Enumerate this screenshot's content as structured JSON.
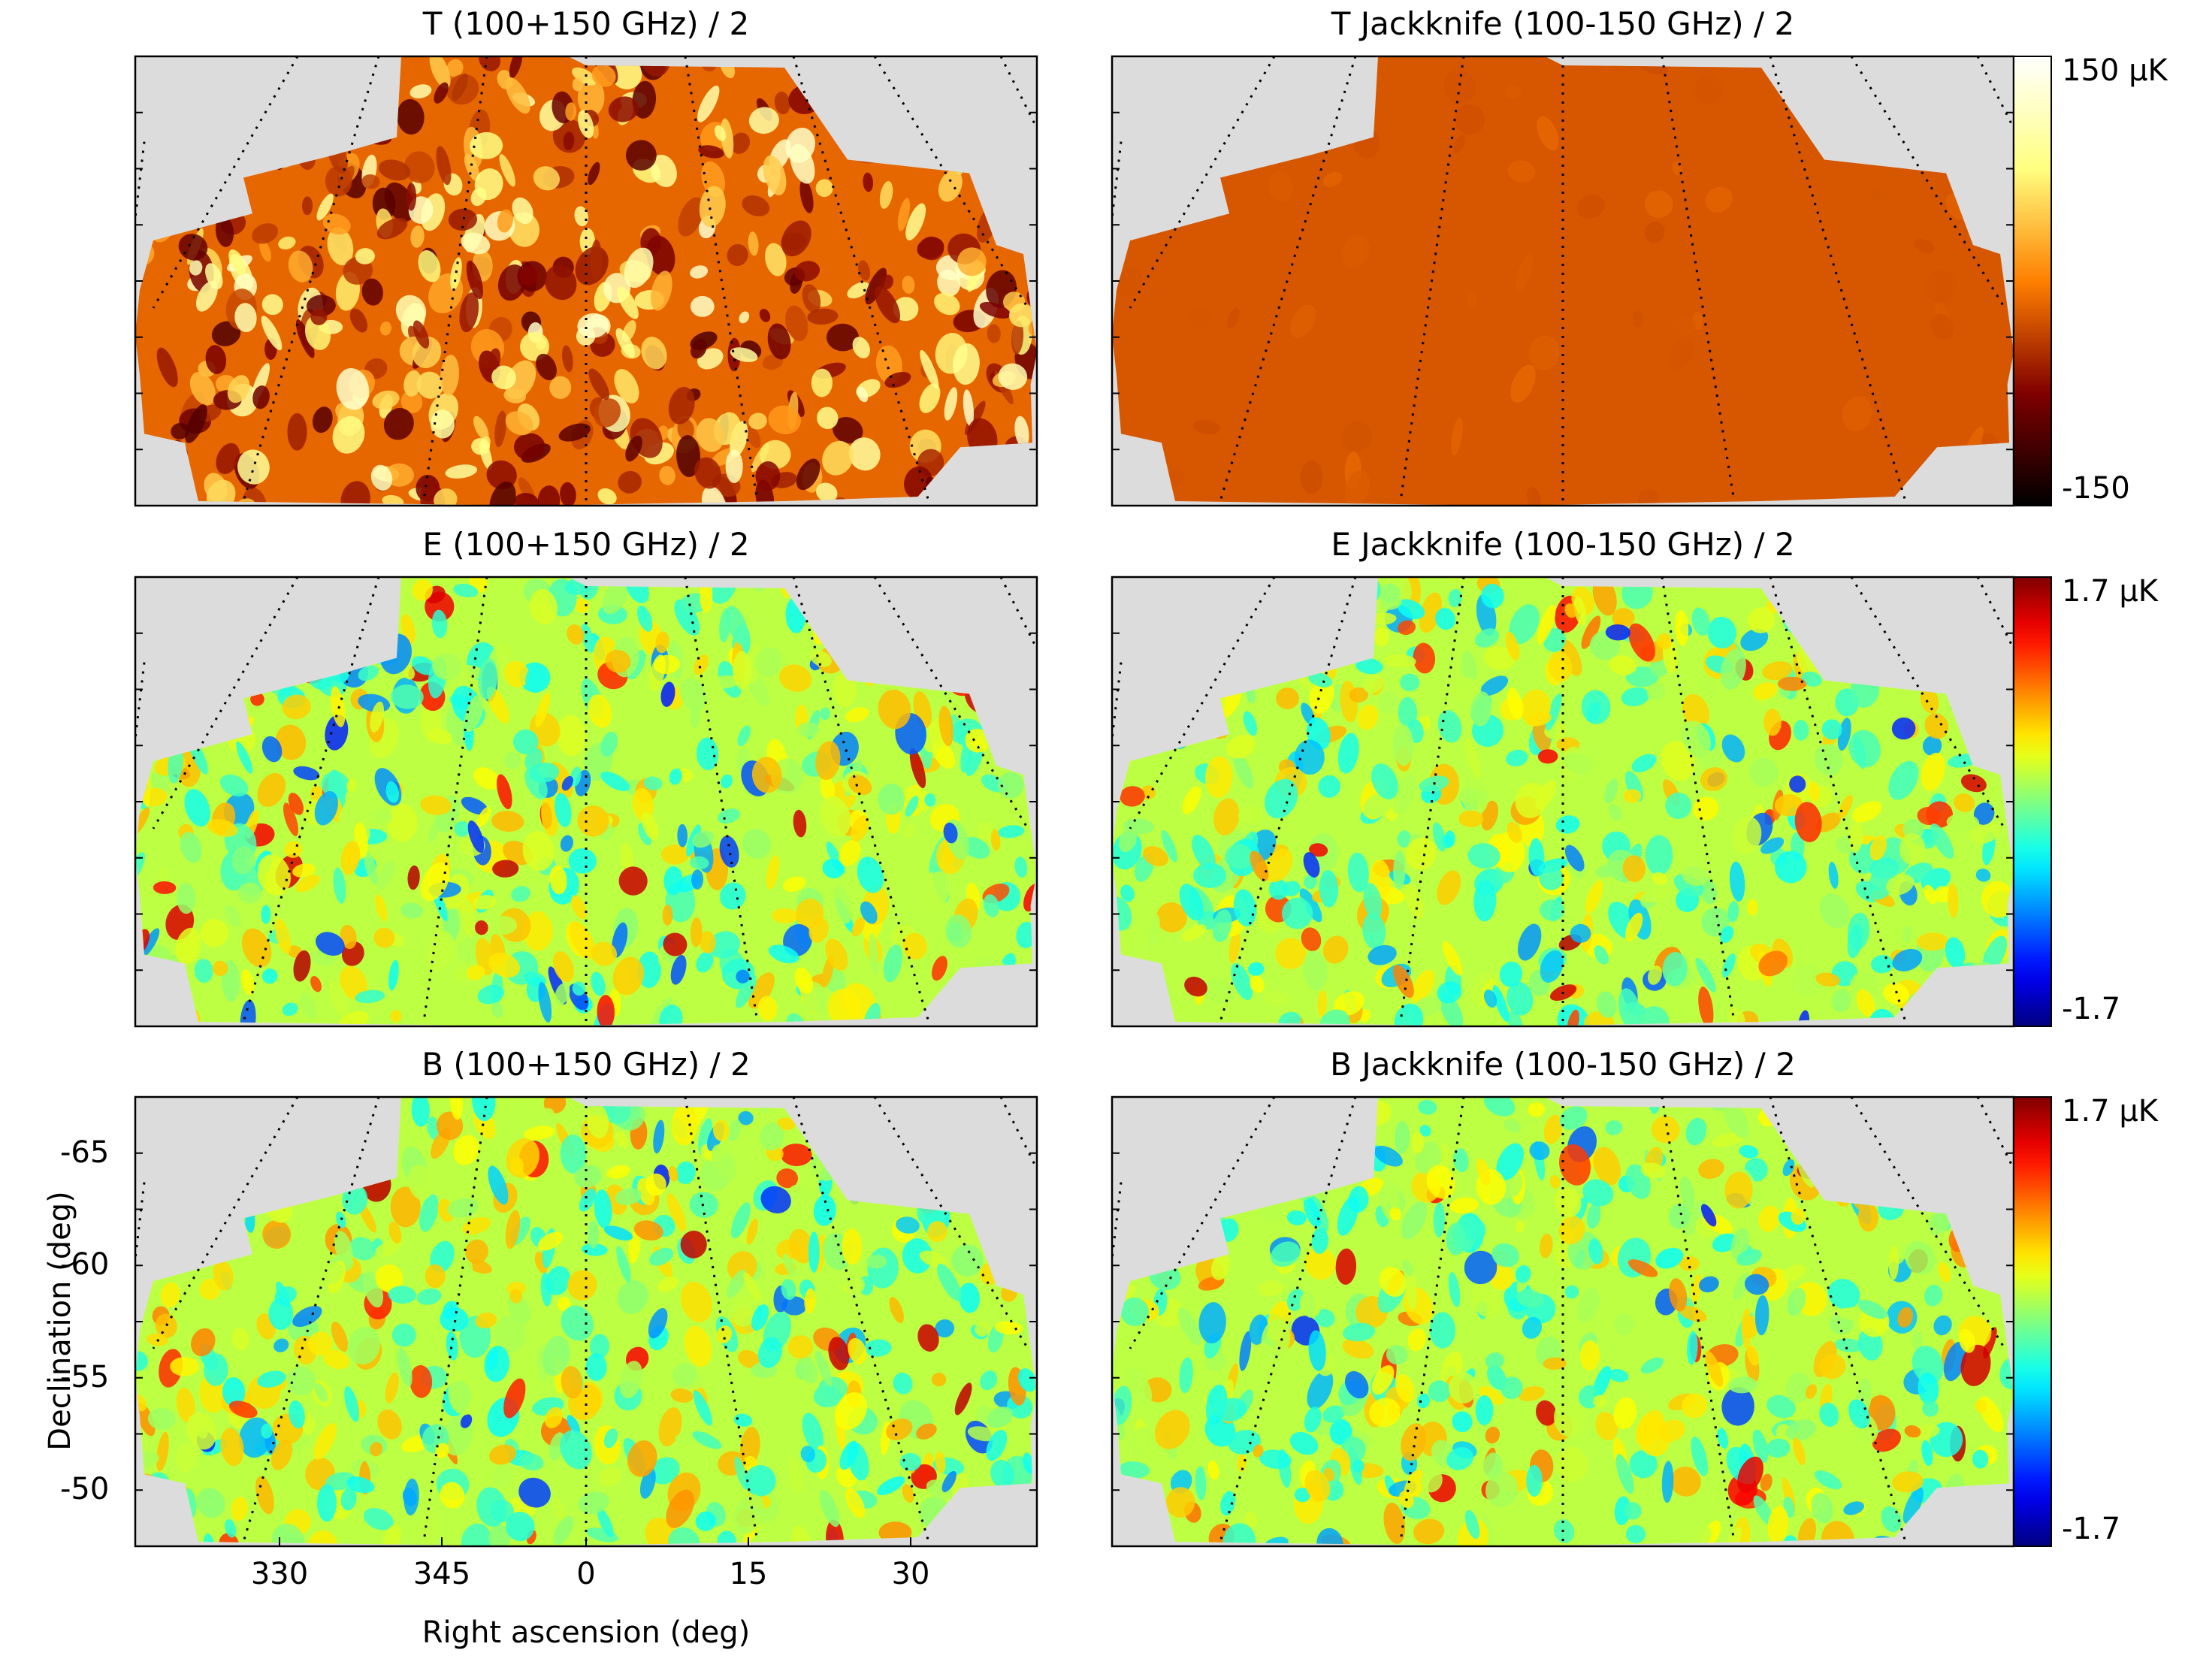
{
  "figure": {
    "colorbars": [
      {
        "max_label": "150 μK",
        "min_label": "-150",
        "colormap": "afmhot"
      },
      {
        "max_label": "1.7 μK",
        "min_label": "-1.7",
        "colormap": "jet"
      },
      {
        "max_label": "1.7 μK",
        "min_label": "-1.7",
        "colormap": "jet"
      }
    ],
    "xlabel": "Right ascension (deg)",
    "ylabel": "Declination (deg)"
  },
  "chart_data": [
    {
      "type": "heatmap",
      "title": "T  (100+150 GHz) / 2",
      "vmin": -150,
      "vmax": 150,
      "unit": "μK"
    },
    {
      "type": "heatmap",
      "title": "T Jackknife  (100-150 GHz) / 2",
      "vmin": -150,
      "vmax": 150,
      "unit": "μK"
    },
    {
      "type": "heatmap",
      "title": "E  (100+150 GHz) / 2",
      "vmin": -1.7,
      "vmax": 1.7,
      "unit": "μK"
    },
    {
      "type": "heatmap",
      "title": "E Jackknife  (100-150 GHz) / 2",
      "vmin": -1.7,
      "vmax": 1.7,
      "unit": "μK"
    },
    {
      "type": "heatmap",
      "title": "B  (100+150 GHz) / 2",
      "vmin": -1.7,
      "vmax": 1.7,
      "unit": "μK",
      "xlabel": "Right ascension (deg)",
      "ylabel": "Declination (deg)",
      "x_ticks": [
        "330",
        "345",
        "0",
        "15",
        "30"
      ],
      "y_ticks": [
        "-65",
        "-60",
        "-55",
        "-50"
      ]
    },
    {
      "type": "heatmap",
      "title": "B Jackknife  (100-150 GHz) / 2",
      "vmin": -1.7,
      "vmax": 1.7,
      "unit": "μK"
    }
  ]
}
